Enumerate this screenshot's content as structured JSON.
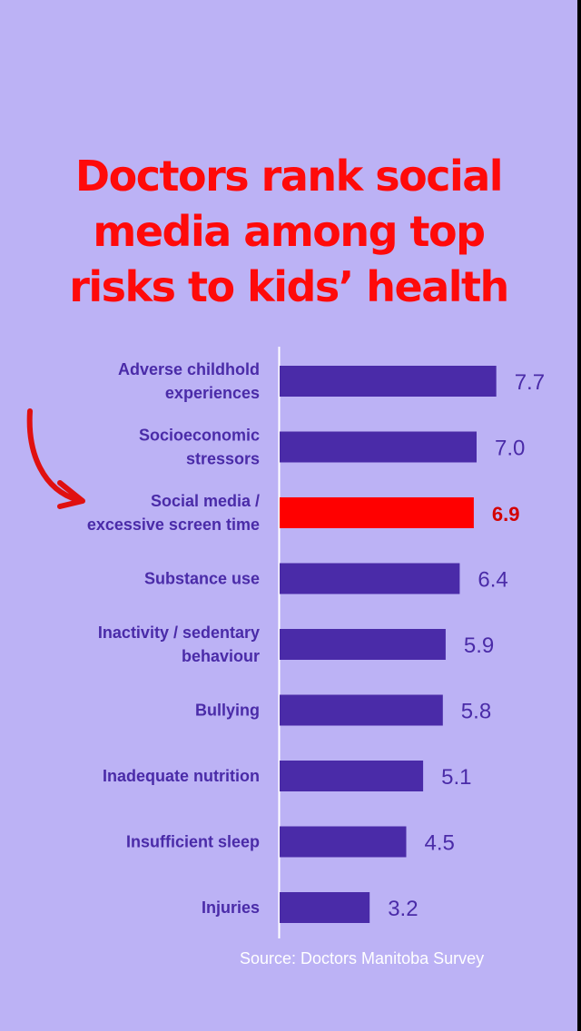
{
  "title_lines": [
    "Doctors rank social",
    "media among top",
    "risks to kids’ health"
  ],
  "source": "Source: Doctors Manitoba Survey",
  "colors": {
    "background": "#bcb2f5",
    "bar": "#4a2ba8",
    "highlight": "#ff0000",
    "title": "#ff0a0a",
    "text": "#4a2ba8",
    "arrow": "#e01010"
  },
  "arrow_icon": "curved-arrow-icon",
  "chart_data": {
    "type": "bar",
    "orientation": "horizontal",
    "title": "Doctors rank social media among top risks to kids’ health",
    "categories": [
      [
        "Adverse childhold",
        "experiences"
      ],
      [
        "Socioeconomic",
        "stressors"
      ],
      [
        "Social media /",
        "excessive screen time"
      ],
      [
        "Substance use"
      ],
      [
        "Inactivity / sedentary",
        "behaviour"
      ],
      [
        "Bullying"
      ],
      [
        "Inadequate nutrition"
      ],
      [
        "Insufficient sleep"
      ],
      [
        "Injuries"
      ]
    ],
    "values": [
      7.7,
      7.0,
      6.9,
      6.4,
      5.9,
      5.8,
      5.1,
      4.5,
      3.2
    ],
    "value_labels": [
      "7.7",
      "7.0",
      "6.9",
      "6.4",
      "5.9",
      "5.8",
      "5.1",
      "4.5",
      "3.2"
    ],
    "highlight_index": 2,
    "xlim": [
      0,
      10
    ],
    "grid": false,
    "source": "Source: Doctors Manitoba Survey"
  }
}
